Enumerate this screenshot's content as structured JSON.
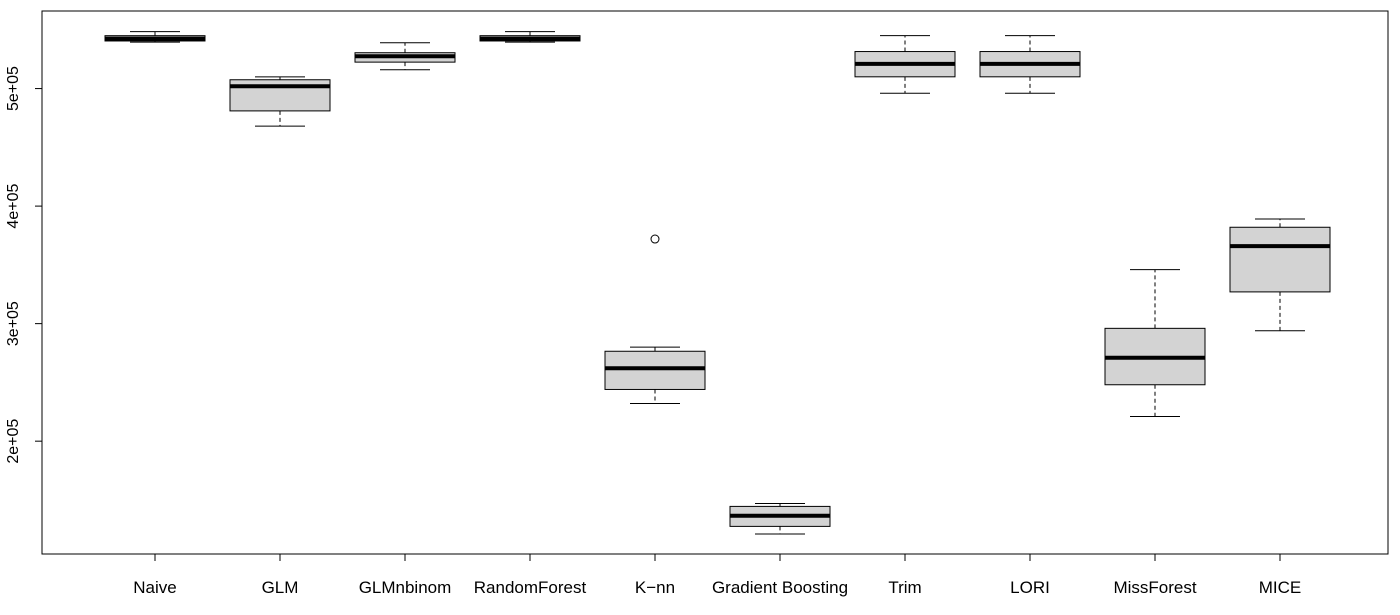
{
  "chart_data": {
    "type": "boxplot",
    "title": "",
    "xlabel": "",
    "ylabel": "",
    "ylim": [
      104000,
      566000
    ],
    "y_ticks": [
      200000,
      300000,
      400000,
      500000
    ],
    "y_tick_labels": [
      "2e+05",
      "3e+05",
      "4e+05",
      "5e+05"
    ],
    "categories": [
      "Naive",
      "GLM",
      "GLMnbinom",
      "RandomForest",
      "K−nn",
      "Gradient Boosting",
      "Trim",
      "LORI",
      "MissForest",
      "MICE"
    ],
    "box_color": "#d3d3d3",
    "boxes": [
      {
        "whisker_low": 539500,
        "q1": 540500,
        "median": 542500,
        "q3": 545000,
        "whisker_high": 548500,
        "outliers": []
      },
      {
        "whisker_low": 468000,
        "q1": 481000,
        "median": 502000,
        "q3": 507500,
        "whisker_high": 510000,
        "outliers": []
      },
      {
        "whisker_low": 516000,
        "q1": 522500,
        "median": 527500,
        "q3": 530500,
        "whisker_high": 539000,
        "outliers": []
      },
      {
        "whisker_low": 539500,
        "q1": 540500,
        "median": 542500,
        "q3": 545000,
        "whisker_high": 548500,
        "outliers": []
      },
      {
        "whisker_low": 232000,
        "q1": 244000,
        "median": 262000,
        "q3": 276500,
        "whisker_high": 280000,
        "outliers": [
          372000
        ]
      },
      {
        "whisker_low": 121000,
        "q1": 127500,
        "median": 136500,
        "q3": 144500,
        "whisker_high": 147000,
        "outliers": []
      },
      {
        "whisker_low": 496000,
        "q1": 510000,
        "median": 521000,
        "q3": 531500,
        "whisker_high": 545000,
        "outliers": []
      },
      {
        "whisker_low": 496000,
        "q1": 510000,
        "median": 521000,
        "q3": 531500,
        "whisker_high": 545000,
        "outliers": []
      },
      {
        "whisker_low": 221000,
        "q1": 248000,
        "median": 271000,
        "q3": 296000,
        "whisker_high": 346000,
        "outliers": []
      },
      {
        "whisker_low": 294000,
        "q1": 327000,
        "median": 366000,
        "q3": 382000,
        "whisker_high": 389000,
        "outliers": []
      }
    ]
  }
}
